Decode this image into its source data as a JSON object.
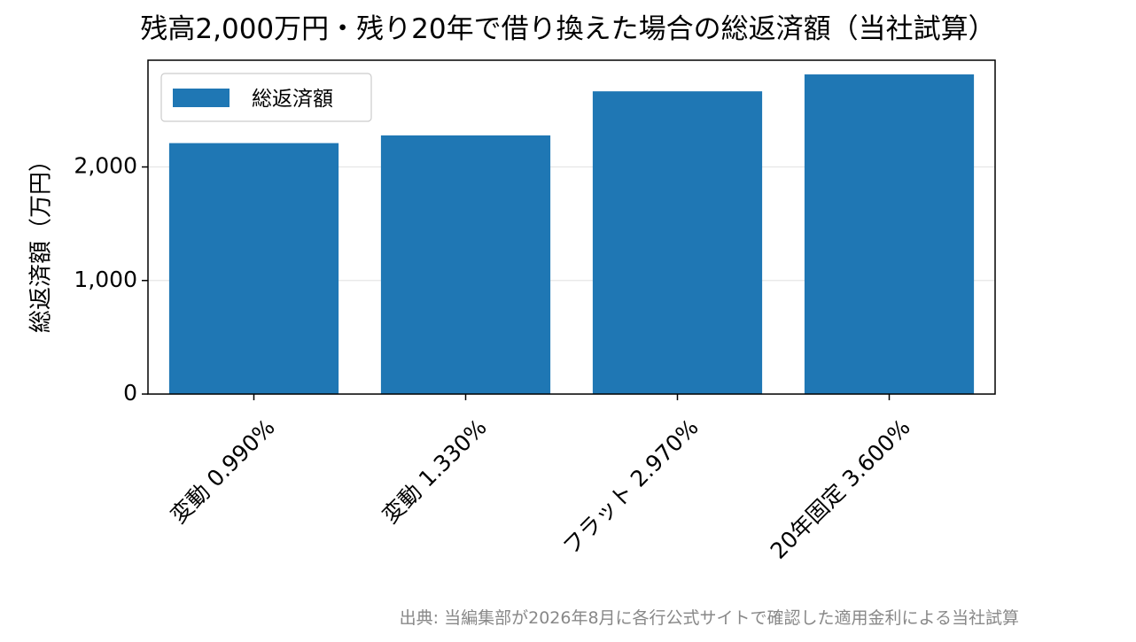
{
  "chart_data": {
    "type": "bar",
    "title": "残高2,000万円・残り20年で借り換えた場合の総返済額（当社試算）",
    "xlabel": "",
    "ylabel": "総返済額（万円）",
    "categories": [
      "変動 0.990%",
      "変動 1.330%",
      "フラット 2.970%",
      "20年固定 3.600%"
    ],
    "series": [
      {
        "name": "総返済額",
        "values": [
          2210,
          2278,
          2666,
          2815
        ]
      }
    ],
    "ylim": [
      0,
      2940
    ],
    "yticks": [
      0,
      1000,
      2000
    ],
    "ytick_labels": [
      "0",
      "1,000",
      "2,000"
    ],
    "grid": "y",
    "legend": "upper-left",
    "bar_color": "#1f77b4",
    "grid_color": "#e6e6e6"
  },
  "source_note": "出典: 当編集部が2026年8月に各行公式サイトで確認した適用金利による当社試算"
}
